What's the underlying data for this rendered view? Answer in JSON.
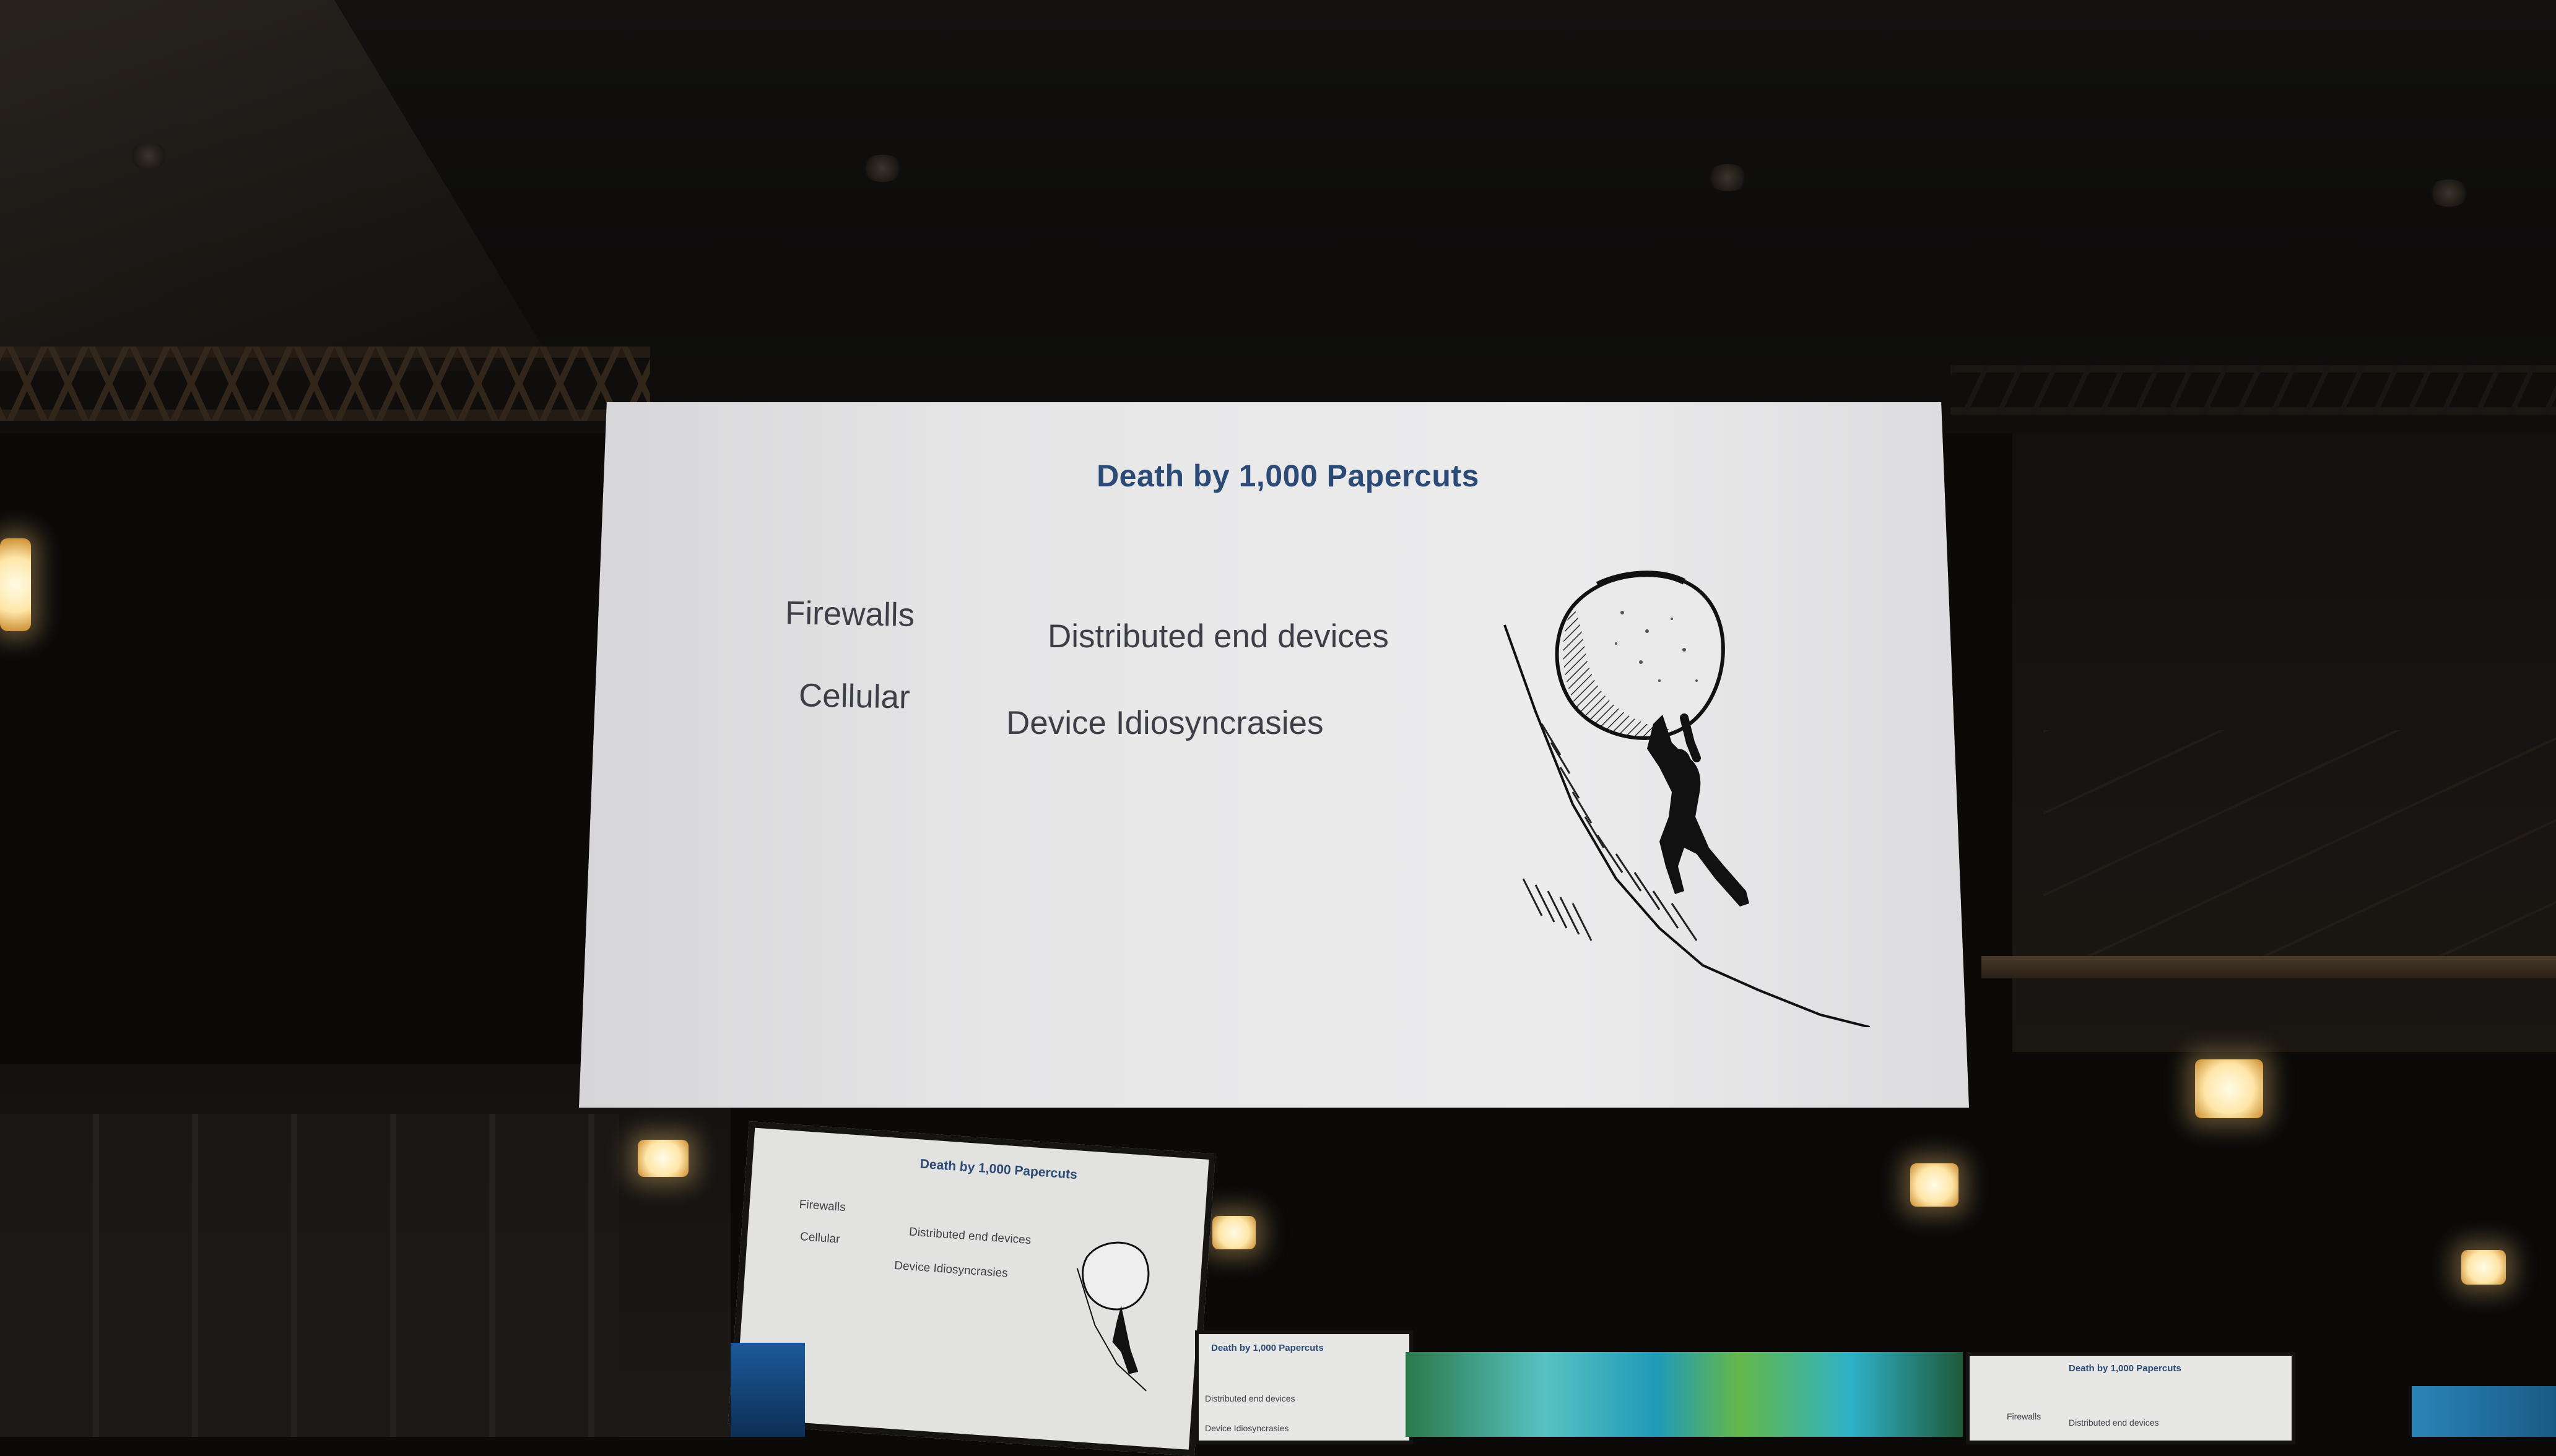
{
  "slide": {
    "title": "Death by 1,000 Papercuts",
    "left_items": [
      "Firewalls",
      "Cellular"
    ],
    "right_items": [
      "Distributed end devices",
      "Device Idiosyncrasies"
    ],
    "illustration": "sisyphus-pushing-boulder-sketch"
  },
  "monitor_main": {
    "title": "Death by 1,000 Papercuts",
    "left_items": [
      "Firewalls",
      "Cellular"
    ],
    "right_items": [
      "Distributed end devices",
      "Device Idiosyncrasies"
    ]
  },
  "colors": {
    "slide_title": "#2b4b76",
    "slide_text": "#3e3f46",
    "screen_bg": "#e6e6e7",
    "room_dark": "#0b0a09"
  }
}
